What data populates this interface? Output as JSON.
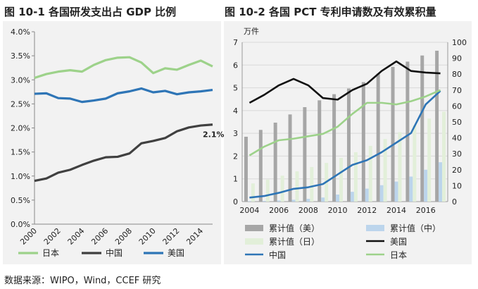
{
  "titles": {
    "left": "图 10-1  各国研发支出占 GDP 比例",
    "right": "图 10-2  各国 PCT 专利申请数及有效累积量"
  },
  "footer": "数据来源：WIPO，Wind，CCEF 研究",
  "chart_data": [
    {
      "type": "line",
      "title": "图 10-1  各国研发支出占 GDP 比例",
      "x": [
        2000,
        2001,
        2002,
        2003,
        2004,
        2005,
        2006,
        2007,
        2008,
        2009,
        2010,
        2011,
        2012,
        2013,
        2014,
        2015
      ],
      "xticks": [
        2000,
        2002,
        2004,
        2006,
        2008,
        2010,
        2012,
        2014
      ],
      "ylim": [
        0,
        4.0
      ],
      "yticks": [
        "0.0%",
        "0.5%",
        "1.0%",
        "1.5%",
        "2.0%",
        "2.5%",
        "3.0%",
        "3.5%",
        "4.0%"
      ],
      "ytick_values": [
        0,
        0.5,
        1.0,
        1.5,
        2.0,
        2.5,
        3.0,
        3.5,
        4.0
      ],
      "grid": false,
      "legend": "bottom",
      "annotation": "2.1%",
      "series": [
        {
          "name": "日本",
          "color": "#9dd28a",
          "values": [
            3.04,
            3.12,
            3.17,
            3.2,
            3.17,
            3.31,
            3.41,
            3.46,
            3.47,
            3.36,
            3.14,
            3.24,
            3.21,
            3.31,
            3.4,
            3.28
          ]
        },
        {
          "name": "中国",
          "color": "#404040",
          "values": [
            0.9,
            0.95,
            1.07,
            1.13,
            1.23,
            1.32,
            1.39,
            1.4,
            1.47,
            1.68,
            1.73,
            1.79,
            1.93,
            2.01,
            2.05,
            2.07
          ]
        },
        {
          "name": "美国",
          "color": "#2e75b6",
          "values": [
            2.71,
            2.72,
            2.62,
            2.61,
            2.54,
            2.57,
            2.61,
            2.72,
            2.76,
            2.82,
            2.74,
            2.77,
            2.7,
            2.74,
            2.76,
            2.79
          ]
        }
      ]
    },
    {
      "type": "bar",
      "title": "图 10-2  各国 PCT 专利申请数及有效累积量",
      "x": [
        2004,
        2005,
        2006,
        2007,
        2008,
        2009,
        2010,
        2011,
        2012,
        2013,
        2014,
        2015,
        2016,
        2017
      ],
      "xticks": [
        2004,
        2006,
        2008,
        2010,
        2012,
        2014,
        2016
      ],
      "ylabel_left": "万件",
      "ylim_left": [
        0,
        7
      ],
      "yticks_left": [
        0,
        1,
        2,
        3,
        4,
        5,
        6,
        7
      ],
      "ylim_right": [
        0,
        100
      ],
      "yticks_right": [
        0,
        10,
        20,
        30,
        40,
        50,
        60,
        70,
        80,
        90,
        100
      ],
      "grid": true,
      "legend": "bottom",
      "bars": [
        {
          "name": "累计值（美）",
          "color": "#a6a6a6",
          "axis": "left",
          "values": [
            2.85,
            3.15,
            3.47,
            3.83,
            4.15,
            4.45,
            4.72,
            4.97,
            5.25,
            5.62,
            5.92,
            6.15,
            6.42,
            6.63
          ]
        },
        {
          "name": "累计值（中）",
          "color": "#bcd5ec",
          "axis": "left",
          "values": [
            0.02,
            0.03,
            0.05,
            0.08,
            0.12,
            0.18,
            0.31,
            0.43,
            0.57,
            0.72,
            0.88,
            1.1,
            1.4,
            1.73
          ]
        },
        {
          "name": "累计值（日）",
          "color": "#e2efd9",
          "axis": "left",
          "values": [
            0.8,
            0.97,
            1.14,
            1.33,
            1.52,
            1.7,
            1.92,
            2.17,
            2.45,
            2.75,
            3.05,
            3.35,
            3.65,
            3.95
          ]
        }
      ],
      "lines": [
        {
          "name": "美国",
          "color": "#111111",
          "axis": "right",
          "values": [
            62,
            67,
            73,
            77,
            73,
            65,
            64,
            70,
            74,
            82,
            88,
            82,
            81,
            80.5
          ]
        },
        {
          "name": "中国",
          "color": "#2e75b6",
          "axis": "right",
          "values": [
            2.5,
            3.5,
            5.5,
            8,
            9,
            11,
            17,
            23,
            26,
            31,
            37,
            43,
            61,
            69.5
          ]
        },
        {
          "name": "日本",
          "color": "#9dd28a",
          "axis": "right",
          "values": [
            29,
            34.5,
            38.5,
            39.5,
            41,
            42.5,
            47,
            55,
            62,
            62,
            61,
            63,
            66,
            70
          ]
        }
      ]
    }
  ]
}
